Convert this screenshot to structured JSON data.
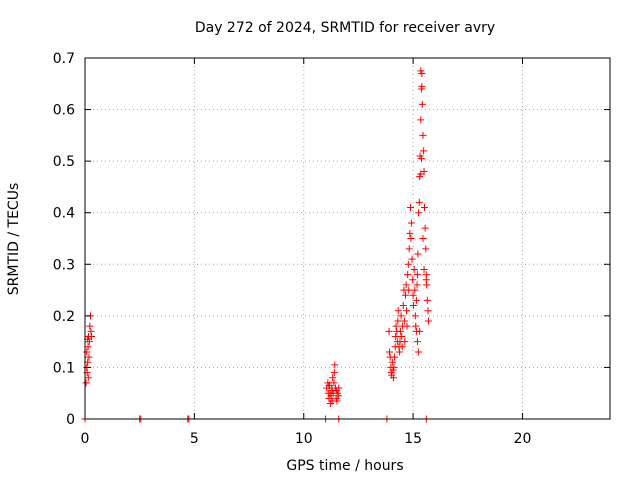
{
  "chart_data": {
    "type": "scatter",
    "title": "Day 272 of 2024, SRMTID for receiver avry",
    "xlabel": "GPS time / hours",
    "ylabel": "SRMTID / TECUs",
    "xlim": [
      0,
      24
    ],
    "ylim": [
      0,
      0.7
    ],
    "xticks": [
      0,
      5,
      10,
      15,
      20
    ],
    "xtick_labels": [
      "0",
      "5",
      "10",
      "15",
      "20"
    ],
    "yticks": [
      0,
      0.1,
      0.2,
      0.3,
      0.4,
      0.5,
      0.6,
      0.7
    ],
    "ytick_labels": [
      "0",
      "0.1",
      "0.2",
      "0.3",
      "0.4",
      "0.5",
      "0.6",
      "0.7"
    ],
    "grid": true,
    "marker_color": "#ff0000",
    "marker": "plus",
    "series": [
      {
        "name": "SRMTID",
        "points": [
          [
            0.05,
            0.07
          ],
          [
            0.08,
            0.1
          ],
          [
            0.1,
            0.09
          ],
          [
            0.12,
            0.11
          ],
          [
            0.14,
            0.14
          ],
          [
            0.16,
            0.16
          ],
          [
            0.18,
            0.12
          ],
          [
            0.2,
            0.15
          ],
          [
            0.22,
            0.18
          ],
          [
            0.25,
            0.2
          ],
          [
            0.27,
            0.17
          ],
          [
            0.3,
            0.16
          ],
          [
            0.15,
            0.08
          ],
          [
            0.08,
            0.13
          ],
          [
            0.12,
            0.155
          ],
          [
            0.0,
            0.0
          ],
          [
            2.5,
            0.0
          ],
          [
            2.55,
            0.0
          ],
          [
            4.7,
            0.0
          ],
          [
            4.75,
            0.0
          ],
          [
            11.0,
            0.0
          ],
          [
            11.6,
            0.0
          ],
          [
            13.8,
            0.0
          ],
          [
            15.6,
            0.0
          ],
          [
            11.05,
            0.06
          ],
          [
            11.1,
            0.07
          ],
          [
            11.12,
            0.05
          ],
          [
            11.15,
            0.04
          ],
          [
            11.18,
            0.065
          ],
          [
            11.2,
            0.05
          ],
          [
            11.22,
            0.03
          ],
          [
            11.25,
            0.045
          ],
          [
            11.28,
            0.06
          ],
          [
            11.3,
            0.035
          ],
          [
            11.32,
            0.08
          ],
          [
            11.35,
            0.05
          ],
          [
            11.38,
            0.07
          ],
          [
            11.4,
            0.09
          ],
          [
            11.42,
            0.105
          ],
          [
            11.45,
            0.06
          ],
          [
            11.48,
            0.04
          ],
          [
            11.5,
            0.055
          ],
          [
            11.52,
            0.035
          ],
          [
            11.55,
            0.05
          ],
          [
            11.58,
            0.045
          ],
          [
            11.6,
            0.06
          ],
          [
            11.15,
            0.065
          ],
          [
            11.3,
            0.055
          ],
          [
            13.9,
            0.17
          ],
          [
            13.92,
            0.13
          ],
          [
            13.95,
            0.12
          ],
          [
            13.98,
            0.1
          ],
          [
            14.0,
            0.09
          ],
          [
            14.02,
            0.085
          ],
          [
            14.05,
            0.11
          ],
          [
            14.08,
            0.095
          ],
          [
            14.1,
            0.08
          ],
          [
            14.12,
            0.1
          ],
          [
            14.15,
            0.12
          ],
          [
            14.18,
            0.14
          ],
          [
            14.2,
            0.16
          ],
          [
            14.22,
            0.18
          ],
          [
            14.25,
            0.17
          ],
          [
            14.28,
            0.15
          ],
          [
            14.3,
            0.19
          ],
          [
            14.32,
            0.21
          ],
          [
            14.35,
            0.14
          ],
          [
            14.38,
            0.13
          ],
          [
            14.4,
            0.15
          ],
          [
            14.42,
            0.17
          ],
          [
            14.45,
            0.2
          ],
          [
            14.48,
            0.16
          ],
          [
            14.5,
            0.14
          ],
          [
            14.52,
            0.18
          ],
          [
            14.55,
            0.22
          ],
          [
            14.58,
            0.25
          ],
          [
            14.6,
            0.19
          ],
          [
            14.62,
            0.15
          ],
          [
            14.65,
            0.24
          ],
          [
            14.68,
            0.26
          ],
          [
            14.7,
            0.21
          ],
          [
            14.72,
            0.18
          ],
          [
            14.75,
            0.28
          ],
          [
            14.78,
            0.3
          ],
          [
            14.8,
            0.25
          ],
          [
            14.82,
            0.33
          ],
          [
            14.85,
            0.36
          ],
          [
            14.88,
            0.41
          ],
          [
            14.9,
            0.35
          ],
          [
            14.92,
            0.38
          ],
          [
            14.95,
            0.31
          ],
          [
            14.98,
            0.27
          ],
          [
            15.0,
            0.24
          ],
          [
            15.02,
            0.22
          ],
          [
            15.05,
            0.29
          ],
          [
            15.08,
            0.25
          ],
          [
            15.1,
            0.2
          ],
          [
            15.12,
            0.18
          ],
          [
            15.15,
            0.23
          ],
          [
            15.18,
            0.26
          ],
          [
            15.2,
            0.28
          ],
          [
            15.22,
            0.32
          ],
          [
            15.25,
            0.4
          ],
          [
            15.28,
            0.42
          ],
          [
            15.3,
            0.47
          ],
          [
            15.32,
            0.51
          ],
          [
            15.35,
            0.58
          ],
          [
            15.38,
            0.64
          ],
          [
            15.4,
            0.67
          ],
          [
            15.42,
            0.61
          ],
          [
            15.45,
            0.55
          ],
          [
            15.48,
            0.52
          ],
          [
            15.5,
            0.48
          ],
          [
            15.52,
            0.41
          ],
          [
            15.55,
            0.37
          ],
          [
            15.58,
            0.33
          ],
          [
            15.6,
            0.28
          ],
          [
            15.62,
            0.26
          ],
          [
            15.65,
            0.23
          ],
          [
            15.68,
            0.21
          ],
          [
            15.7,
            0.19
          ],
          [
            15.35,
            0.675
          ],
          [
            15.4,
            0.645
          ],
          [
            15.38,
            0.505
          ],
          [
            15.35,
            0.475
          ],
          [
            15.45,
            0.35
          ],
          [
            15.5,
            0.29
          ],
          [
            15.3,
            0.17
          ],
          [
            15.25,
            0.13
          ],
          [
            15.2,
            0.15
          ],
          [
            15.15,
            0.17
          ],
          [
            15.6,
            0.27
          ]
        ]
      }
    ]
  }
}
